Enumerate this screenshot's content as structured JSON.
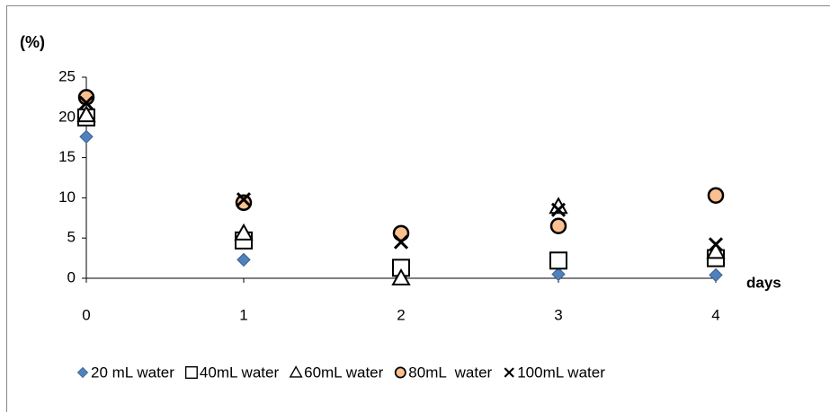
{
  "chart_data": {
    "type": "scatter",
    "y_label": "(%)",
    "x_label": "days",
    "x": [
      0,
      1,
      2,
      3,
      4
    ],
    "xlim": [
      0,
      4
    ],
    "xticks": [
      0,
      1,
      2,
      3,
      4
    ],
    "ylim": [
      0,
      25
    ],
    "yticks": [
      0,
      5,
      10,
      15,
      20,
      25
    ],
    "series": [
      {
        "name": "20 mL water",
        "marker": "diamond",
        "color": "#4f81bd",
        "values": [
          17.6,
          2.3,
          0,
          0.5,
          0.4
        ]
      },
      {
        "name": "40mL water",
        "marker": "square",
        "color": "#ffffff",
        "values": [
          20,
          4.7,
          1.3,
          2.2,
          2.5
        ]
      },
      {
        "name": "60mL water",
        "marker": "triangle",
        "color": "#ffffff",
        "values": [
          20.3,
          5.6,
          0,
          8.9,
          3.3
        ]
      },
      {
        "name": "80mL  water",
        "marker": "circle",
        "color": "#fac090",
        "values": [
          22.5,
          9.4,
          5.6,
          6.5,
          10.3
        ]
      },
      {
        "name": "100mL water",
        "marker": "cross",
        "color": "#000000",
        "values": [
          21.8,
          9.8,
          4.5,
          8.5,
          4.2
        ]
      }
    ]
  }
}
